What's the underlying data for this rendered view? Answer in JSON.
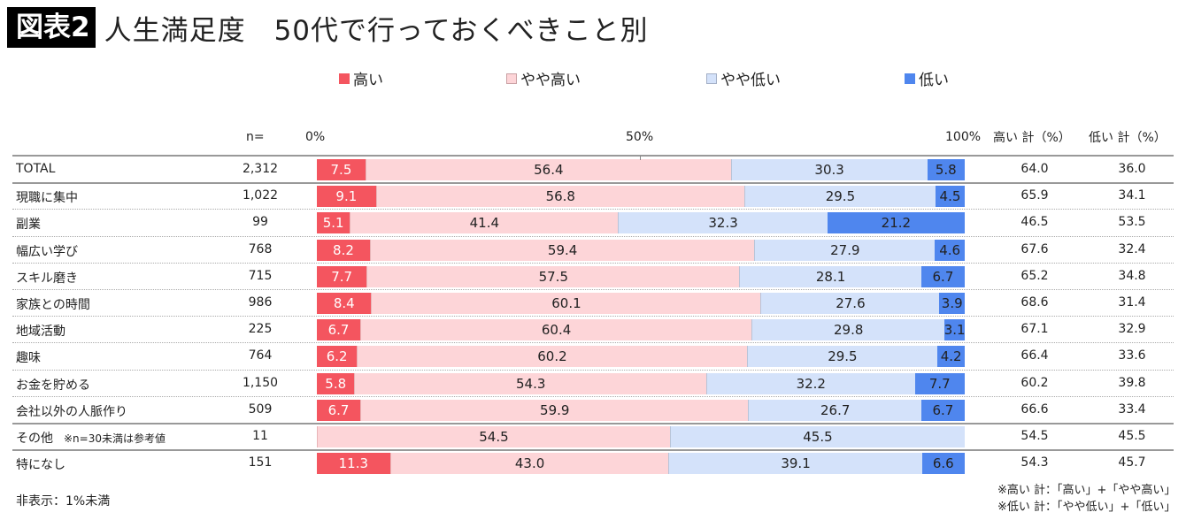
{
  "title": {
    "label": "図表2",
    "text": "人生満足度　50代で行っておくべきこと別"
  },
  "chart_data": {
    "type": "bar",
    "orientation": "horizontal",
    "stacked": "100%",
    "title": "人生満足度　50代で行っておくべきこと別",
    "xlim": [
      0,
      100
    ],
    "xticks": [
      "0%",
      "50%",
      "100%"
    ],
    "legend_position": "top",
    "series": [
      {
        "name": "高い",
        "color": "#f4555f"
      },
      {
        "name": "やや高い",
        "color": "#fdd5d8"
      },
      {
        "name": "やや低い",
        "color": "#d4e2fa"
      },
      {
        "name": "低い",
        "color": "#4f86ee"
      }
    ],
    "n_header": "n=",
    "col_headers": [
      "高い 計（%）",
      "低い 計（%）"
    ],
    "rows": [
      {
        "label": "TOTAL",
        "note": "",
        "n": "2,312",
        "values": [
          7.5,
          56.4,
          30.3,
          5.8
        ],
        "labels": [
          "7.5",
          "56.4",
          "30.3",
          "5.8"
        ],
        "high": "64.0",
        "low": "36.0"
      },
      {
        "label": "現職に集中",
        "note": "",
        "n": "1,022",
        "values": [
          9.1,
          56.8,
          29.5,
          4.5
        ],
        "labels": [
          "9.1",
          "56.8",
          "29.5",
          "4.5"
        ],
        "high": "65.9",
        "low": "34.1"
      },
      {
        "label": "副業",
        "note": "",
        "n": "99",
        "values": [
          5.1,
          41.4,
          32.3,
          21.2
        ],
        "labels": [
          "5.1",
          "41.4",
          "32.3",
          "21.2"
        ],
        "high": "46.5",
        "low": "53.5"
      },
      {
        "label": "幅広い学び",
        "note": "",
        "n": "768",
        "values": [
          8.2,
          59.4,
          27.9,
          4.6
        ],
        "labels": [
          "8.2",
          "59.4",
          "27.9",
          "4.6"
        ],
        "high": "67.6",
        "low": "32.4"
      },
      {
        "label": "スキル磨き",
        "note": "",
        "n": "715",
        "values": [
          7.7,
          57.5,
          28.1,
          6.7
        ],
        "labels": [
          "7.7",
          "57.5",
          "28.1",
          "6.7"
        ],
        "high": "65.2",
        "low": "34.8"
      },
      {
        "label": "家族との時間",
        "note": "",
        "n": "986",
        "values": [
          8.4,
          60.1,
          27.6,
          3.9
        ],
        "labels": [
          "8.4",
          "60.1",
          "27.6",
          "3.9"
        ],
        "high": "68.6",
        "low": "31.4"
      },
      {
        "label": "地域活動",
        "note": "",
        "n": "225",
        "values": [
          6.7,
          60.4,
          29.8,
          3.1
        ],
        "labels": [
          "6.7",
          "60.4",
          "29.8",
          "3.1"
        ],
        "high": "67.1",
        "low": "32.9"
      },
      {
        "label": "趣味",
        "note": "",
        "n": "764",
        "values": [
          6.2,
          60.2,
          29.5,
          4.2
        ],
        "labels": [
          "6.2",
          "60.2",
          "29.5",
          "4.2"
        ],
        "high": "66.4",
        "low": "33.6"
      },
      {
        "label": "お金を貯める",
        "note": "",
        "n": "1,150",
        "values": [
          5.8,
          54.3,
          32.2,
          7.7
        ],
        "labels": [
          "5.8",
          "54.3",
          "32.2",
          "7.7"
        ],
        "high": "60.2",
        "low": "39.8"
      },
      {
        "label": "会社以外の人脈作り",
        "note": "",
        "n": "509",
        "values": [
          6.7,
          59.9,
          26.7,
          6.7
        ],
        "labels": [
          "6.7",
          "59.9",
          "26.7",
          "6.7"
        ],
        "high": "66.6",
        "low": "33.4"
      },
      {
        "label": "その他",
        "note": "※n=30未満は参考値",
        "n": "11",
        "values": [
          0,
          54.5,
          45.5,
          0
        ],
        "labels": [
          "",
          "54.5",
          "45.5",
          ""
        ],
        "high": "54.5",
        "low": "45.5"
      },
      {
        "label": "特になし",
        "note": "",
        "n": "151",
        "values": [
          11.3,
          43.0,
          39.1,
          6.6
        ],
        "labels": [
          "11.3",
          "43.0",
          "39.1",
          "6.6"
        ],
        "high": "54.3",
        "low": "45.7"
      }
    ]
  },
  "footnotes": {
    "left": "非表示：1%未満",
    "right1": "※高い 計：「高い」+「やや高い」",
    "right2": "※低い 計：「やや低い」+「低い」"
  }
}
